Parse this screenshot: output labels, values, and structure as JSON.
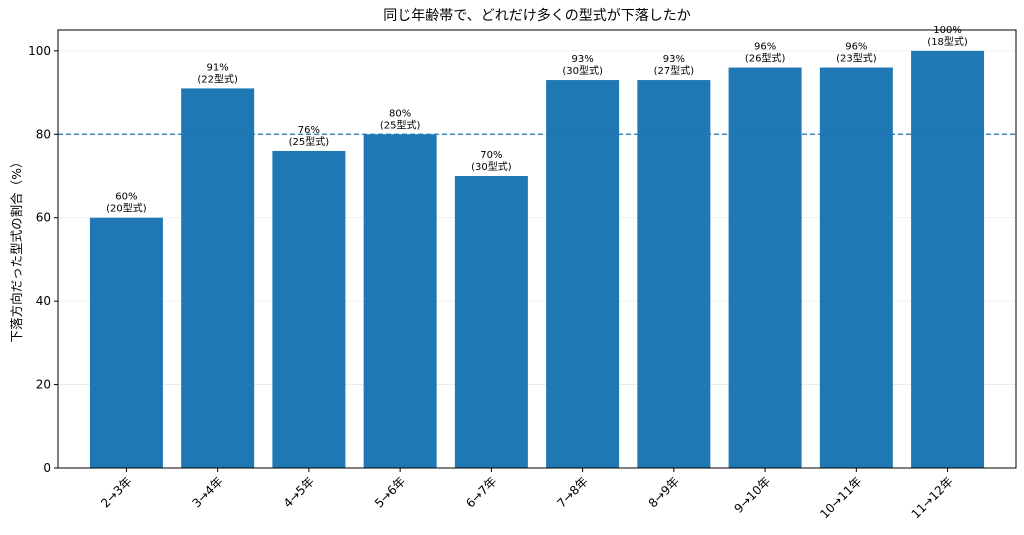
{
  "chart_data": {
    "type": "bar",
    "title": "同じ年齢帯で、どれだけ多くの型式が下落したか",
    "xlabel": "",
    "ylabel": "下落方向だった型式の割合（%）",
    "categories": [
      "2→3年",
      "3→4年",
      "4→5年",
      "5→6年",
      "6→7年",
      "7→8年",
      "8→9年",
      "9→10年",
      "10→11年",
      "11→12年"
    ],
    "values": [
      60,
      91,
      76,
      80,
      70,
      93,
      93,
      96,
      96,
      100
    ],
    "value_labels": [
      "60%",
      "91%",
      "76%",
      "80%",
      "70%",
      "93%",
      "93%",
      "96%",
      "96%",
      "100%"
    ],
    "count_labels": [
      "(20型式)",
      "(22型式)",
      "(25型式)",
      "(25型式)",
      "(30型式)",
      "(30型式)",
      "(27型式)",
      "(26型式)",
      "(23型式)",
      "(18型式)"
    ],
    "ylim": [
      0,
      105
    ],
    "yticks": [
      "0",
      "20",
      "40",
      "60",
      "80",
      "100"
    ],
    "reference_line": 80,
    "grid": "horizontal",
    "bar_color": "#1f77b4"
  }
}
